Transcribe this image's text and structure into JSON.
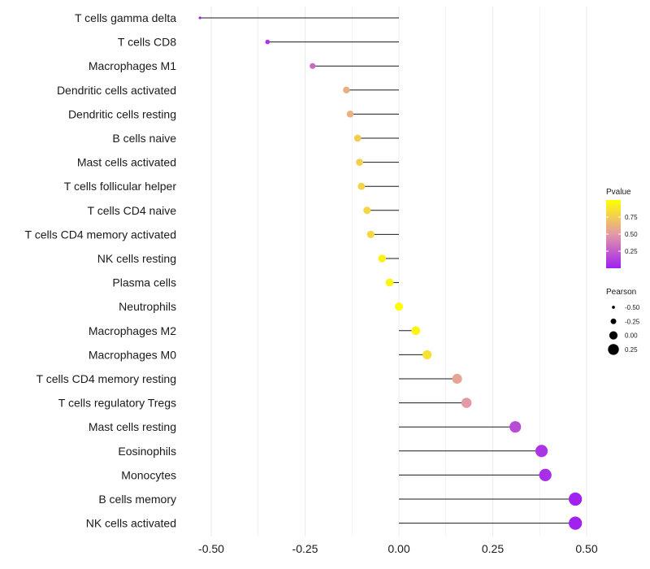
{
  "chart_data": {
    "type": "lollipop",
    "title": "",
    "xlabel": "",
    "ylabel": "",
    "xlim": [
      -0.55,
      0.52
    ],
    "x_ticks": [
      -0.5,
      -0.25,
      0.0,
      0.25,
      0.5
    ],
    "x_tick_labels": [
      "-0.50",
      "-0.25",
      "0.00",
      "0.25",
      "0.50"
    ],
    "grid": true,
    "categories": [
      "T cells gamma delta",
      "T cells CD8",
      "Macrophages M1",
      "Dendritic cells activated",
      "Dendritic cells resting",
      "B cells naive",
      "Mast cells activated",
      "T cells follicular helper",
      "T cells CD4 naive",
      "T cells CD4 memory activated",
      "NK cells resting",
      "Plasma cells",
      "Neutrophils",
      "Macrophages M2",
      "Macrophages M0",
      "T cells CD4 memory resting",
      "T cells regulatory  Tregs ",
      "Mast cells resting",
      "Eosinophils",
      "Monocytes",
      "B cells memory",
      "NK cells activated"
    ],
    "pearson": [
      -0.53,
      -0.35,
      -0.23,
      -0.14,
      -0.13,
      -0.11,
      -0.105,
      -0.1,
      -0.085,
      -0.075,
      -0.045,
      -0.025,
      0.0,
      0.045,
      0.075,
      0.155,
      0.18,
      0.31,
      0.38,
      0.39,
      0.47,
      0.47
    ],
    "pvalue": [
      0.02,
      0.08,
      0.3,
      0.6,
      0.62,
      0.75,
      0.76,
      0.78,
      0.8,
      0.8,
      0.93,
      0.95,
      1.0,
      0.95,
      0.85,
      0.55,
      0.5,
      0.18,
      0.08,
      0.06,
      0.01,
      0.01
    ],
    "color_legend": {
      "title": "Pvalue",
      "range": [
        0.0,
        1.0
      ],
      "ticks": [
        0.25,
        0.5,
        0.75
      ],
      "tick_labels": [
        "0.25",
        "0.50",
        "0.75"
      ],
      "low_color": "#a020f0",
      "mid_color": "#e39aa6",
      "high_color": "#ffff00"
    },
    "size_legend": {
      "title": "Pearson",
      "values": [
        -0.5,
        -0.25,
        0.0,
        0.25
      ],
      "labels": [
        "-0.50",
        "-0.25",
        "0.00",
        "0.25"
      ]
    },
    "legend_position": "right"
  }
}
